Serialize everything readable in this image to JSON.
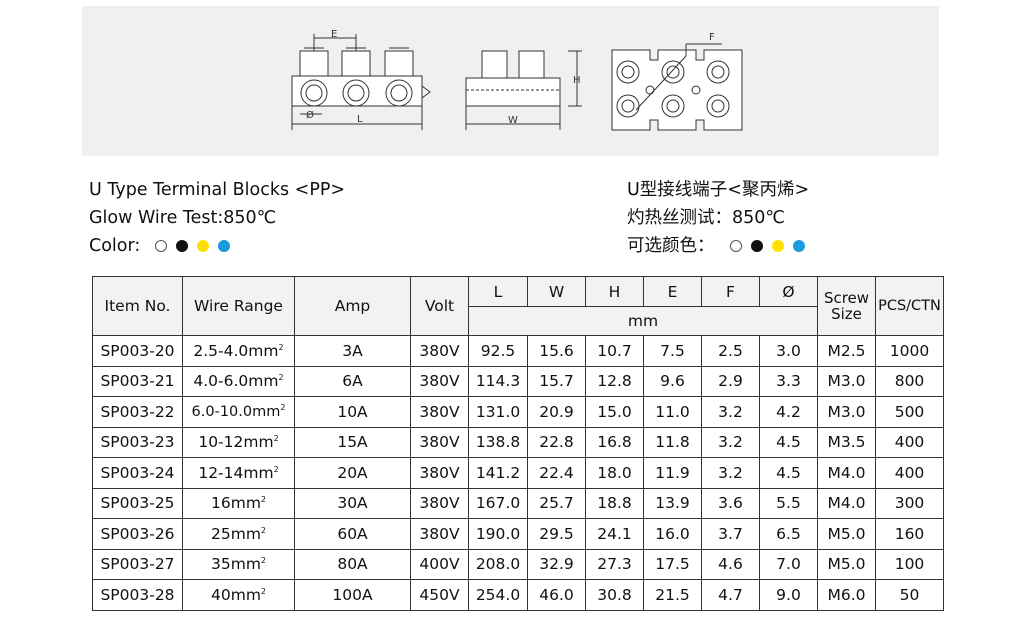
{
  "drawing": {
    "dim_labels": [
      "E",
      "Ø",
      "L",
      "W",
      "H",
      "F"
    ]
  },
  "title_en": "U Type Terminal Blocks <PP>",
  "glow_en": "Glow Wire Test:850℃",
  "color_label_en": "Color:",
  "title_cn": "U型接线端子<聚丙烯>",
  "glow_cn": "灼热丝测试：850℃",
  "color_label_cn": "可选颜色：",
  "colors": [
    {
      "name": "white",
      "hex": "#ffffff"
    },
    {
      "name": "black",
      "hex": "#111111"
    },
    {
      "name": "yellow",
      "hex": "#ffe100"
    },
    {
      "name": "blue",
      "hex": "#1a9be0"
    }
  ],
  "table": {
    "headers": {
      "item": "Item No.",
      "wire": "Wire Range",
      "amp": "Amp",
      "volt": "Volt",
      "L": "L",
      "W": "W",
      "H": "H",
      "E": "E",
      "F": "F",
      "dia": "Ø",
      "unit": "mm",
      "screw_1": "Screw",
      "screw_2": "Size",
      "pcs": "PCS/CTN"
    },
    "wire_unit": "mm",
    "wire_sup": "2",
    "rows": [
      {
        "item": "SP003-20",
        "wire": "2.5-4.0",
        "amp": "3A",
        "volt": "380V",
        "L": "92.5",
        "W": "15.6",
        "H": "10.7",
        "E": "7.5",
        "F": "2.5",
        "dia": "3.0",
        "screw": "M2.5",
        "pcs": "1000"
      },
      {
        "item": "SP003-21",
        "wire": "4.0-6.0",
        "amp": "6A",
        "volt": "380V",
        "L": "114.3",
        "W": "15.7",
        "H": "12.8",
        "E": "9.6",
        "F": "2.9",
        "dia": "3.3",
        "screw": "M3.0",
        "pcs": "800"
      },
      {
        "item": "SP003-22",
        "wire": "6.0-10.0",
        "amp": "10A",
        "volt": "380V",
        "L": "131.0",
        "W": "20.9",
        "H": "15.0",
        "E": "11.0",
        "F": "3.2",
        "dia": "4.2",
        "screw": "M3.0",
        "pcs": "500"
      },
      {
        "item": "SP003-23",
        "wire": "10-12",
        "amp": "15A",
        "volt": "380V",
        "L": "138.8",
        "W": "22.8",
        "H": "16.8",
        "E": "11.8",
        "F": "3.2",
        "dia": "4.5",
        "screw": "M3.5",
        "pcs": "400"
      },
      {
        "item": "SP003-24",
        "wire": "12-14",
        "amp": "20A",
        "volt": "380V",
        "L": "141.2",
        "W": "22.4",
        "H": "18.0",
        "E": "11.9",
        "F": "3.2",
        "dia": "4.5",
        "screw": "M4.0",
        "pcs": "400"
      },
      {
        "item": "SP003-25",
        "wire": "16",
        "amp": "30A",
        "volt": "380V",
        "L": "167.0",
        "W": "25.7",
        "H": "18.8",
        "E": "13.9",
        "F": "3.6",
        "dia": "5.5",
        "screw": "M4.0",
        "pcs": "300"
      },
      {
        "item": "SP003-26",
        "wire": "25",
        "amp": "60A",
        "volt": "380V",
        "L": "190.0",
        "W": "29.5",
        "H": "24.1",
        "E": "16.0",
        "F": "3.7",
        "dia": "6.5",
        "screw": "M5.0",
        "pcs": "160"
      },
      {
        "item": "SP003-27",
        "wire": "35",
        "amp": "80A",
        "volt": "400V",
        "L": "208.0",
        "W": "32.9",
        "H": "27.3",
        "E": "17.5",
        "F": "4.6",
        "dia": "7.0",
        "screw": "M5.0",
        "pcs": "100"
      },
      {
        "item": "SP003-28",
        "wire": "40",
        "amp": "100A",
        "volt": "450V",
        "L": "254.0",
        "W": "46.0",
        "H": "30.8",
        "E": "21.5",
        "F": "4.7",
        "dia": "9.0",
        "screw": "M6.0",
        "pcs": "50"
      }
    ]
  }
}
